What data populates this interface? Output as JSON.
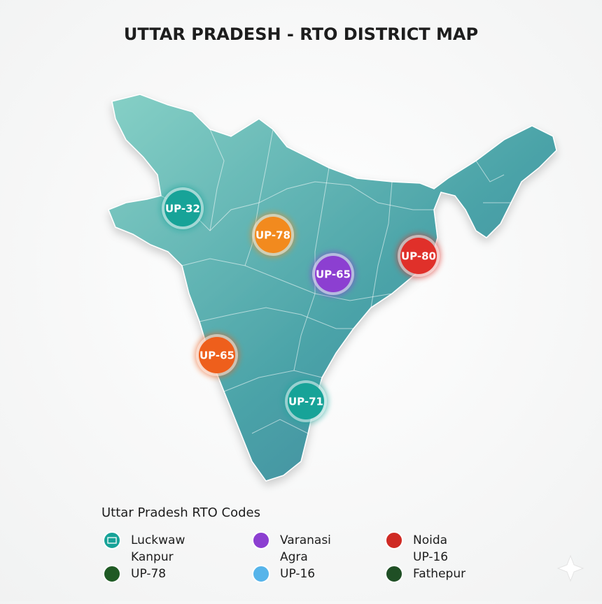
{
  "title": "UTTAR PRADESH - RTO DISTRICT MAP",
  "markers": [
    {
      "label": "UP-32",
      "color": "#17a398"
    },
    {
      "label": "UP-78",
      "color": "#f28a1e"
    },
    {
      "label": "UP-65",
      "color": "#8c3fd1"
    },
    {
      "label": "UP-80",
      "color": "#e0302a"
    },
    {
      "label": "UP-65",
      "color": "#ee5f1c"
    },
    {
      "label": "UP-71",
      "color": "#17a398"
    }
  ],
  "legend": {
    "title": "Uttar Pradesh RTO Codes",
    "columns": [
      [
        {
          "label": "Luckwaw",
          "color": "#17a398"
        },
        {
          "label": "Kanpur"
        },
        {
          "label": "UP-78",
          "color": "#1f5a24"
        }
      ],
      [
        {
          "label": "Varanasi",
          "color": "#8c3fd1"
        },
        {
          "label": "Agra"
        },
        {
          "label": "UP-16",
          "color": "#56b4ea"
        }
      ],
      [
        {
          "label": "Noida",
          "color": "#cf2a24"
        },
        {
          "label": "UP-16"
        },
        {
          "label": "Fathepur",
          "color": "#1f4f25"
        }
      ]
    ]
  }
}
